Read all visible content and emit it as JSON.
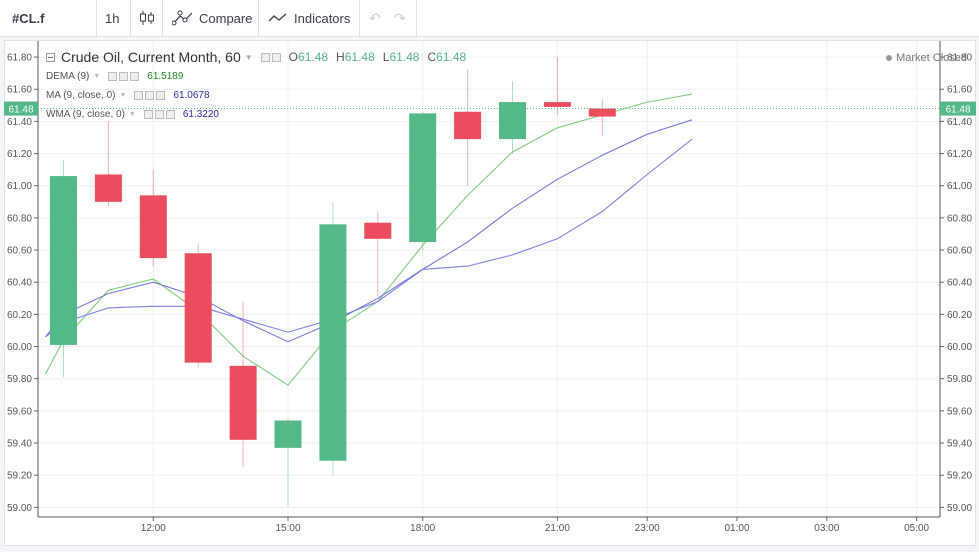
{
  "toolbar": {
    "symbol": "#CL.f",
    "interval": "1h",
    "compare_label": "Compare",
    "indicators_label": "Indicators"
  },
  "header": {
    "title": "Crude Oil, Current Month, 60",
    "o_label": "O",
    "o_value": "61.48",
    "h_label": "H",
    "h_value": "61.48",
    "l_label": "L",
    "l_value": "61.48",
    "c_label": "C",
    "c_value": "61.48",
    "market_status": "Market Closed"
  },
  "indicators": [
    {
      "name": "DEMA (9)",
      "value": "61.5189",
      "color": "#22a322"
    },
    {
      "name": "MA (9, close, 0)",
      "value": "61.0678",
      "color": "#3333cc"
    },
    {
      "name": "WMA (9, close, 0)",
      "value": "61.3220",
      "color": "#3333cc"
    }
  ],
  "colors": {
    "up": "#53b987",
    "down": "#eb4d5c",
    "dema": "#7fcf7f",
    "ma": "#8080e8",
    "wma": "#7878e0",
    "last_price": "#53b987"
  },
  "chart_data": {
    "type": "candlestick",
    "title": "Crude Oil, Current Month, 60",
    "y_ticks": [
      "61.80",
      "61.60",
      "61.40",
      "61.20",
      "61.00",
      "60.80",
      "60.60",
      "60.40",
      "60.20",
      "60.00",
      "59.80",
      "59.60",
      "59.40",
      "59.20",
      "59.00"
    ],
    "x_ticks": [
      "12:00",
      "15:00",
      "18:00",
      "21:00",
      "23:00",
      "01:00",
      "03:00",
      "05:00"
    ],
    "x_tick_hours": [
      12,
      15,
      18,
      21,
      23,
      25,
      27,
      29
    ],
    "ylim": [
      58.94,
      61.9
    ],
    "last_price": "61.48",
    "grid": true,
    "candles": [
      {
        "t": 10,
        "o": 60.01,
        "h": 61.16,
        "l": 59.81,
        "c": 61.06
      },
      {
        "t": 11,
        "o": 61.07,
        "h": 61.4,
        "l": 60.87,
        "c": 60.9
      },
      {
        "t": 12,
        "o": 60.94,
        "h": 61.1,
        "l": 60.5,
        "c": 60.55
      },
      {
        "t": 13,
        "o": 60.58,
        "h": 60.64,
        "l": 59.87,
        "c": 59.9
      },
      {
        "t": 14,
        "o": 59.88,
        "h": 60.28,
        "l": 59.25,
        "c": 59.42
      },
      {
        "t": 15,
        "o": 59.37,
        "h": 59.56,
        "l": 59.01,
        "c": 59.54
      },
      {
        "t": 16,
        "o": 59.29,
        "h": 60.9,
        "l": 59.2,
        "c": 60.76
      },
      {
        "t": 17,
        "o": 60.77,
        "h": 60.84,
        "l": 60.31,
        "c": 60.67
      },
      {
        "t": 18,
        "o": 60.65,
        "h": 61.46,
        "l": 60.6,
        "c": 61.45
      },
      {
        "t": 19,
        "o": 61.46,
        "h": 61.72,
        "l": 61.0,
        "c": 61.29
      },
      {
        "t": 20,
        "o": 61.29,
        "h": 61.65,
        "l": 61.2,
        "c": 61.52
      },
      {
        "t": 21,
        "o": 61.52,
        "h": 61.8,
        "l": 61.44,
        "c": 61.49
      },
      {
        "t": 22,
        "o": 61.48,
        "h": 61.54,
        "l": 61.31,
        "c": 61.43
      }
    ],
    "series": [
      {
        "name": "DEMA (9)",
        "points": [
          [
            9.6,
            59.83
          ],
          [
            10,
            60.04
          ],
          [
            11,
            60.35
          ],
          [
            12,
            60.42
          ],
          [
            13,
            60.22
          ],
          [
            14,
            59.94
          ],
          [
            15,
            59.76
          ],
          [
            16,
            60.1
          ],
          [
            17,
            60.28
          ],
          [
            18,
            60.63
          ],
          [
            19,
            60.94
          ],
          [
            20,
            61.21
          ],
          [
            21,
            61.36
          ],
          [
            22,
            61.44
          ],
          [
            23,
            61.52
          ],
          [
            24,
            61.57
          ]
        ]
      },
      {
        "name": "MA (9, close, 0)",
        "points": [
          [
            9.6,
            60.06
          ],
          [
            10,
            60.15
          ],
          [
            11,
            60.24
          ],
          [
            12,
            60.25
          ],
          [
            13,
            60.25
          ],
          [
            14,
            60.17
          ],
          [
            15,
            60.09
          ],
          [
            16,
            60.17
          ],
          [
            17,
            60.28
          ],
          [
            18,
            60.48
          ],
          [
            19,
            60.5
          ],
          [
            20,
            60.57
          ],
          [
            21,
            60.67
          ],
          [
            22,
            60.84
          ],
          [
            23,
            61.07
          ],
          [
            24,
            61.29
          ]
        ]
      },
      {
        "name": "WMA (9, close, 0)",
        "points": [
          [
            9.6,
            60.06
          ],
          [
            10,
            60.2
          ],
          [
            11,
            60.33
          ],
          [
            12,
            60.4
          ],
          [
            13,
            60.31
          ],
          [
            14,
            60.16
          ],
          [
            15,
            60.03
          ],
          [
            16,
            60.15
          ],
          [
            17,
            60.3
          ],
          [
            18,
            60.48
          ],
          [
            19,
            60.65
          ],
          [
            20,
            60.86
          ],
          [
            21,
            61.04
          ],
          [
            22,
            61.19
          ],
          [
            23,
            61.32
          ],
          [
            24,
            61.41
          ]
        ]
      }
    ]
  }
}
